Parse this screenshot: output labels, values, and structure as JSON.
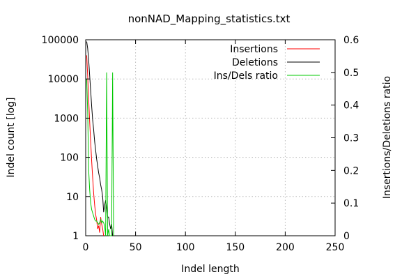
{
  "chart_data": {
    "type": "line",
    "title": "nonNAD_Mapping_statistics.txt",
    "xlabel": "Indel length",
    "ylabel": "Indel count [log]",
    "y2label": "Insertions/Deletions ratio",
    "xlim": [
      0,
      250
    ],
    "ylim": [
      1,
      100000
    ],
    "y2lim": [
      0,
      0.6
    ],
    "yscale": "log",
    "xticks": [
      "0",
      "50",
      "100",
      "150",
      "200",
      "250"
    ],
    "yticks": [
      "1",
      "10",
      "100",
      "1000",
      "10000",
      "100000"
    ],
    "y2ticks": [
      "0",
      "0.1",
      "0.2",
      "0.3",
      "0.4",
      "0.5",
      "0.6"
    ],
    "grid": true,
    "legend_position": "top-right",
    "series": [
      {
        "name": "Insertions",
        "color": "#ff0000",
        "axis": "y",
        "x": [
          1,
          2,
          3,
          4,
          5,
          6,
          7,
          8,
          9,
          10,
          11,
          12,
          13,
          14,
          15,
          16,
          17,
          18
        ],
        "y": [
          40000,
          12000,
          3000,
          800,
          250,
          80,
          30,
          12,
          6,
          3.5,
          2.5,
          1.5,
          1.8,
          1.2,
          3,
          2,
          1.5,
          1
        ]
      },
      {
        "name": "Deletions",
        "color": "#000000",
        "axis": "y",
        "x": [
          1,
          2,
          3,
          4,
          5,
          6,
          7,
          8,
          9,
          10,
          11,
          12,
          13,
          14,
          15,
          16,
          17,
          18,
          19,
          20,
          21,
          22,
          23,
          24,
          25,
          26,
          27
        ],
        "y": [
          90000,
          60000,
          30000,
          12000,
          5000,
          2000,
          900,
          500,
          250,
          150,
          90,
          60,
          40,
          30,
          20,
          15,
          10,
          4,
          6,
          8,
          5,
          3,
          3,
          2,
          1.5,
          2,
          1
        ]
      },
      {
        "name": "Ins/Dels ratio",
        "color": "#00c800",
        "axis": "y2",
        "x": [
          1,
          2,
          3,
          4,
          5,
          6,
          7,
          8,
          9,
          10,
          11,
          12,
          13,
          14,
          15,
          16,
          17,
          18,
          19,
          20,
          21,
          22,
          23,
          24,
          25,
          26,
          27,
          28
        ],
        "y": [
          0.48,
          0.38,
          0.2,
          0.14,
          0.1,
          0.08,
          0.07,
          0.06,
          0.05,
          0.045,
          0.045,
          0.04,
          0.035,
          0.04,
          0.05,
          0.04,
          0.045,
          0.04,
          0.03,
          0,
          0.5,
          0,
          0.02,
          0,
          0,
          0,
          0.5,
          0
        ]
      }
    ]
  }
}
